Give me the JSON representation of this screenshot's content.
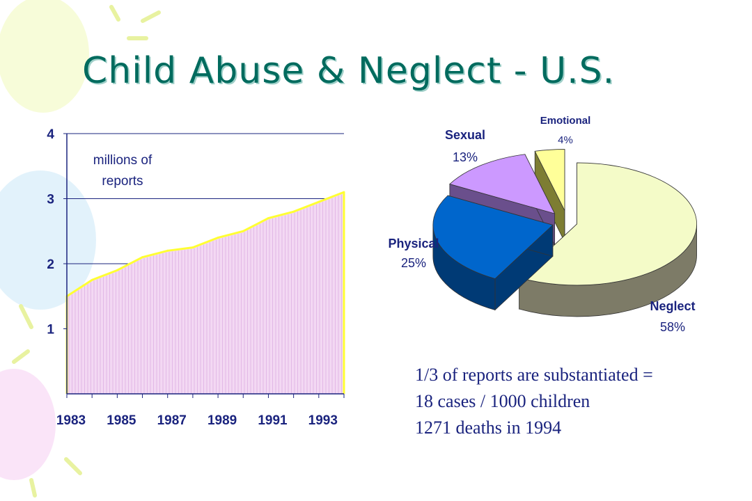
{
  "title": "Child Abuse & Neglect - U.S.",
  "notes": [
    "1/3 of reports are substantiated =",
    "18 cases / 1000 children",
    "1271 deaths in 1994"
  ],
  "colors": {
    "title": "#006b5e",
    "text": "#1a237e",
    "area_fill": "#f3d8f3",
    "area_line": "#ffff33",
    "neglect": "#f4fbc8",
    "physical": "#0066cc",
    "sexual": "#cc99ff",
    "emotional": "#ffff99"
  },
  "chart_data": [
    {
      "type": "area",
      "annotation": [
        "millions of",
        "reports"
      ],
      "x_tick_labels": [
        "1983",
        "1985",
        "1987",
        "1989",
        "1991",
        "1993"
      ],
      "x": [
        1983,
        1984,
        1985,
        1986,
        1987,
        1988,
        1989,
        1990,
        1991,
        1992,
        1993,
        1994
      ],
      "series": [
        {
          "values": [
            1.5,
            1.75,
            1.9,
            2.1,
            2.2,
            2.25,
            2.4,
            2.5,
            2.7,
            2.8,
            2.95,
            3.1
          ]
        }
      ],
      "y_ticks": [
        "1",
        "2",
        "3",
        "4"
      ],
      "ylim": [
        0,
        4
      ],
      "grid": true
    },
    {
      "type": "pie",
      "style": "3d-exploded",
      "slices": [
        {
          "label": "Neglect",
          "value": 58,
          "value_label": "58%"
        },
        {
          "label": "Physical",
          "value": 25,
          "value_label": "25%"
        },
        {
          "label": "Sexual",
          "value": 13,
          "value_label": "13%"
        },
        {
          "label": "Emotional",
          "value": 4,
          "value_label": "4%"
        }
      ]
    }
  ]
}
